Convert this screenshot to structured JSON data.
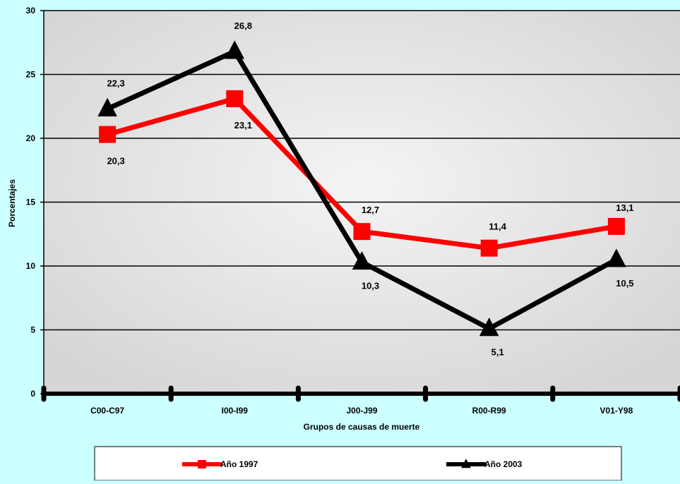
{
  "chart_data": {
    "type": "line",
    "title": "",
    "xlabel": "Grupos de causas de muerte",
    "ylabel": "Porcentajes",
    "ylim": [
      0,
      30
    ],
    "yticks": [
      0,
      5,
      10,
      15,
      20,
      25,
      30
    ],
    "grid": true,
    "legend_position": "bottom",
    "categories": [
      "C00-C97",
      "I00-I99",
      "J00-J99",
      "R00-R99",
      "V01-Y98"
    ],
    "series": [
      {
        "name": "Año 1997",
        "color": "#ff0000",
        "marker": "square",
        "values": [
          20.3,
          23.1,
          12.7,
          11.4,
          13.1
        ],
        "labels": [
          "20,3",
          "23,1",
          "12,7",
          "11,4",
          "13,1"
        ]
      },
      {
        "name": "Año 2003",
        "color": "#000000",
        "marker": "triangle",
        "values": [
          22.3,
          26.8,
          10.3,
          5.1,
          10.5
        ],
        "labels": [
          "22,3",
          "26,8",
          "10,3",
          "5,1",
          "10,5"
        ]
      }
    ]
  },
  "colors": {
    "background": "#ccffff",
    "plot_area": "#e0e0e0",
    "gridline": "#000000"
  }
}
